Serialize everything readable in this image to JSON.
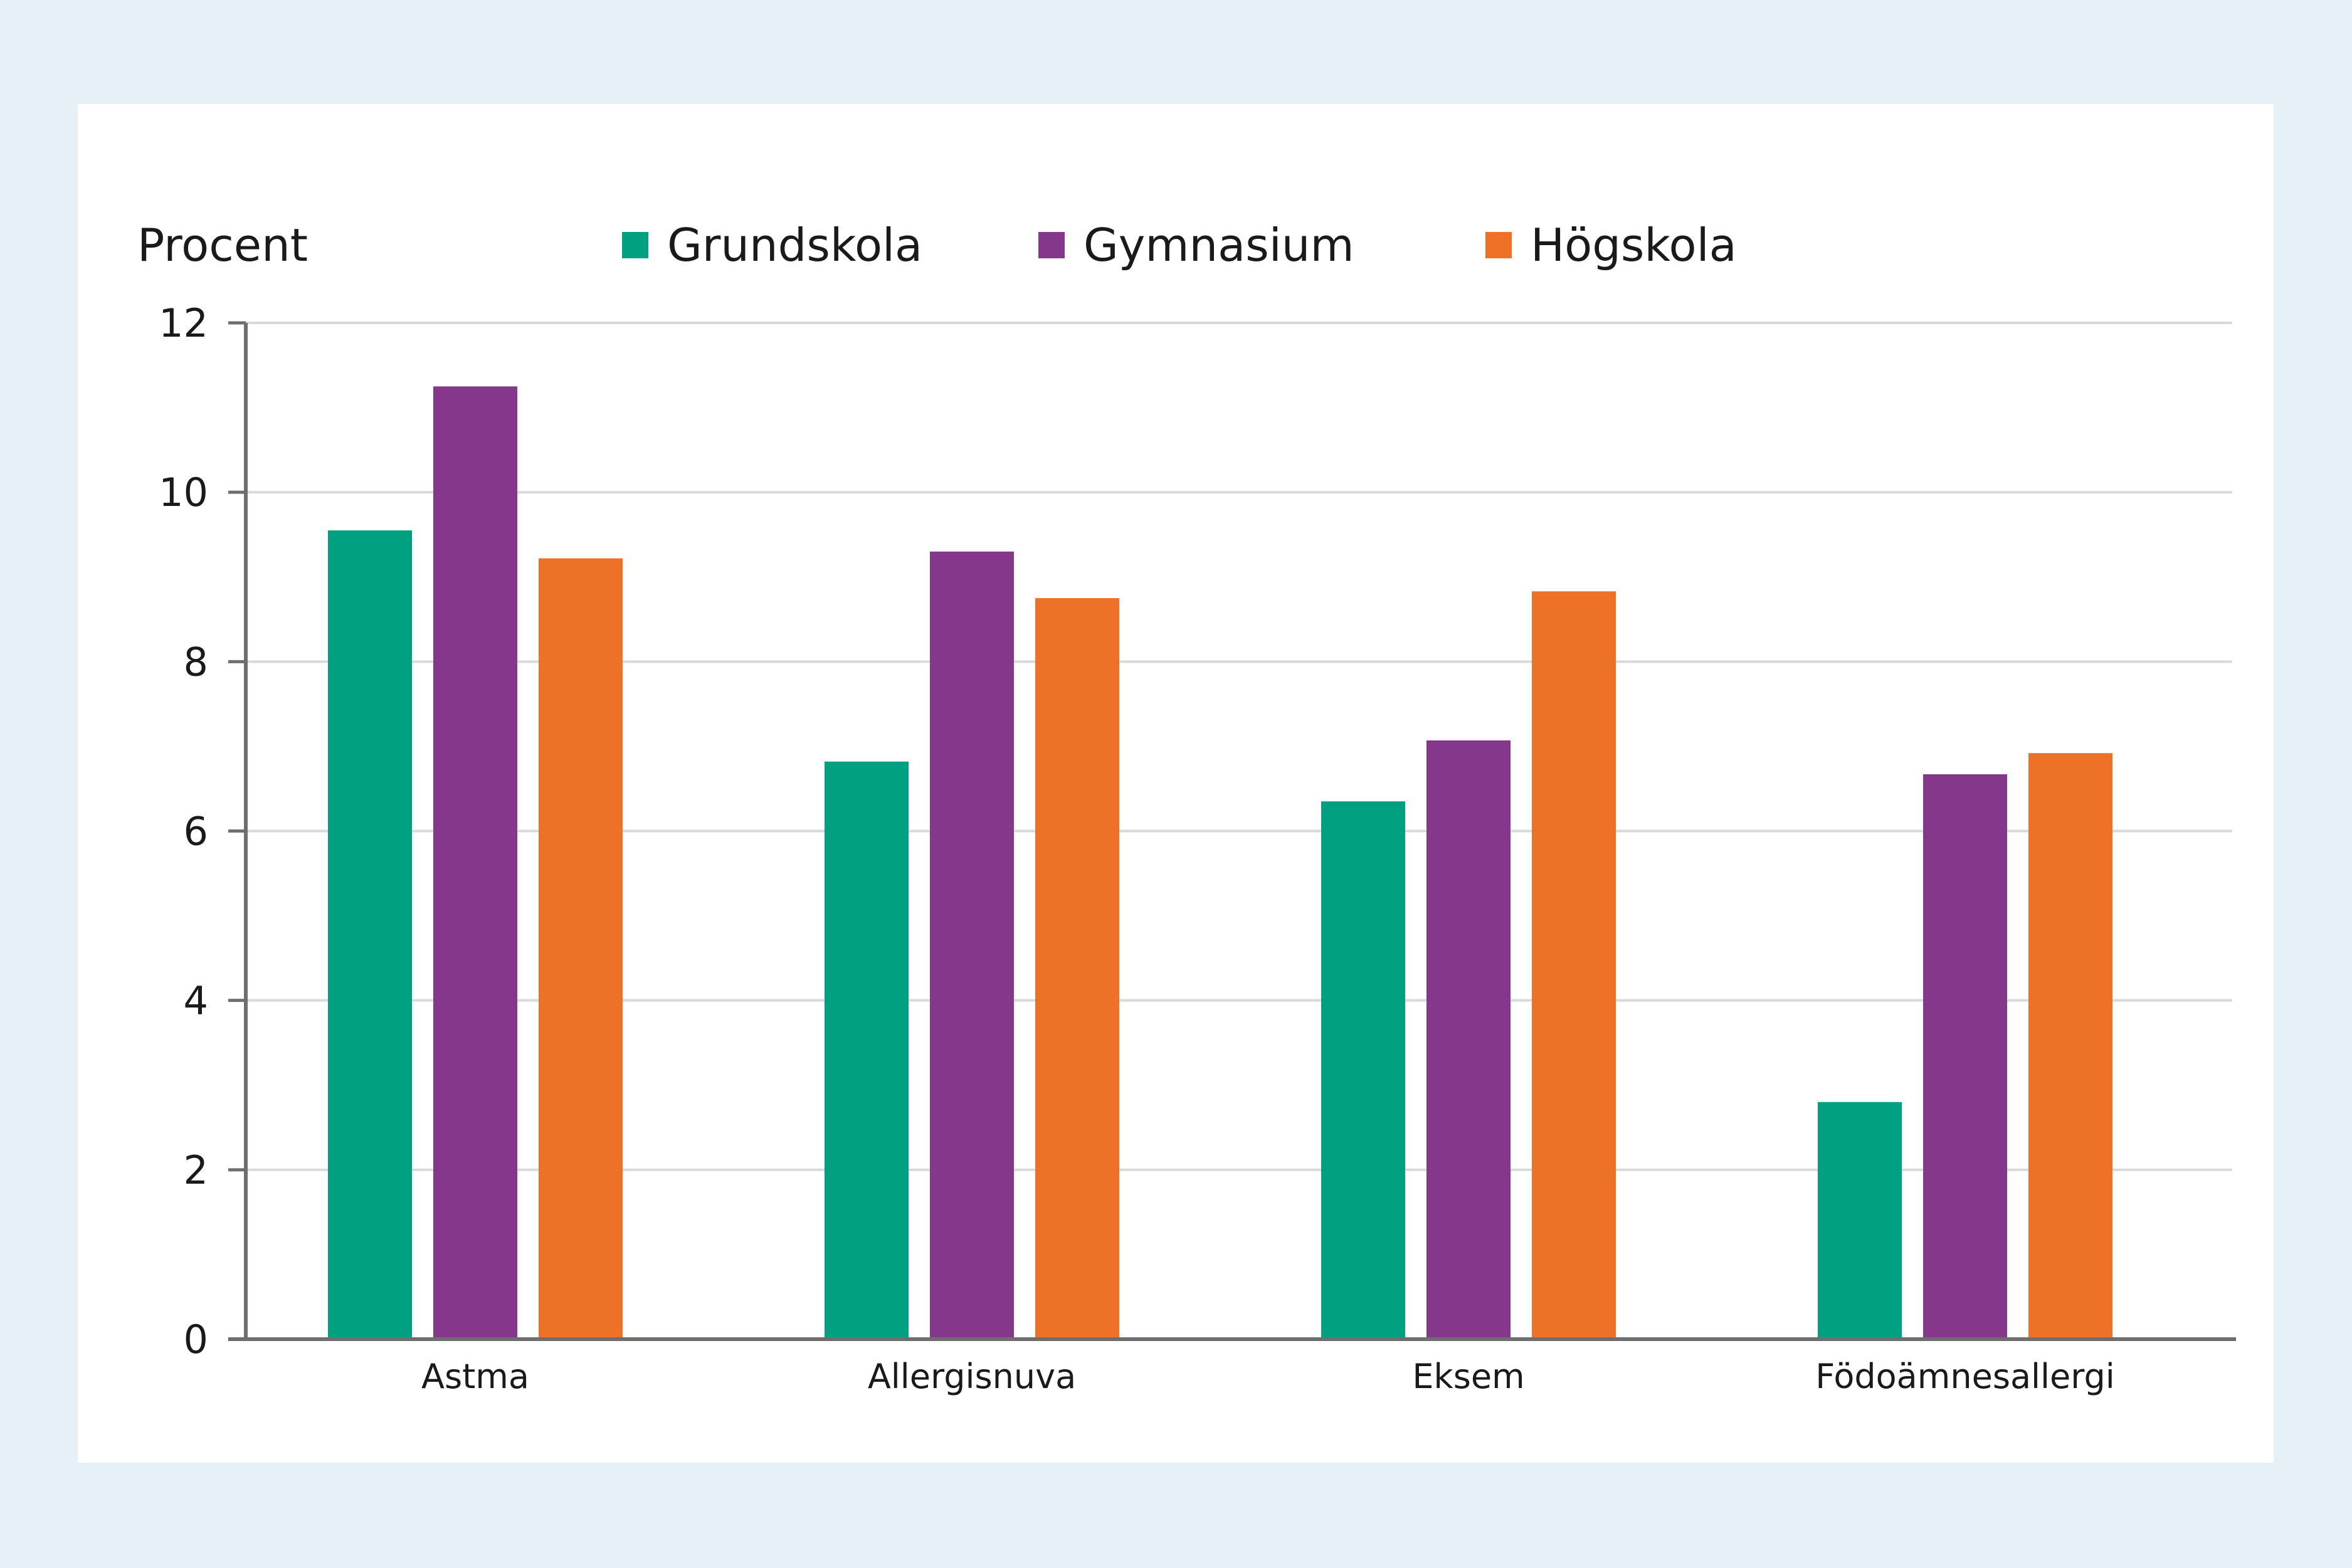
{
  "chart_data": {
    "type": "bar",
    "ylabel": "Procent",
    "ylim": [
      0,
      12
    ],
    "yticks": [
      "0",
      "2",
      "4",
      "6",
      "8",
      "10",
      "12"
    ],
    "categories": [
      "Astma",
      "Allergisnuva",
      "Eksem",
      "Födoämnesallergi"
    ],
    "series": [
      {
        "name": "Grundskola",
        "color": "#00a080",
        "values": [
          9.55,
          6.82,
          6.35,
          2.8
        ]
      },
      {
        "name": "Gymnasium",
        "color": "#84378b",
        "values": [
          11.25,
          9.3,
          7.07,
          6.67
        ]
      },
      {
        "name": "Högskola",
        "color": "#ee7128",
        "values": [
          9.22,
          8.75,
          8.83,
          6.92
        ]
      }
    ],
    "grid": true,
    "legend_position": "top"
  }
}
